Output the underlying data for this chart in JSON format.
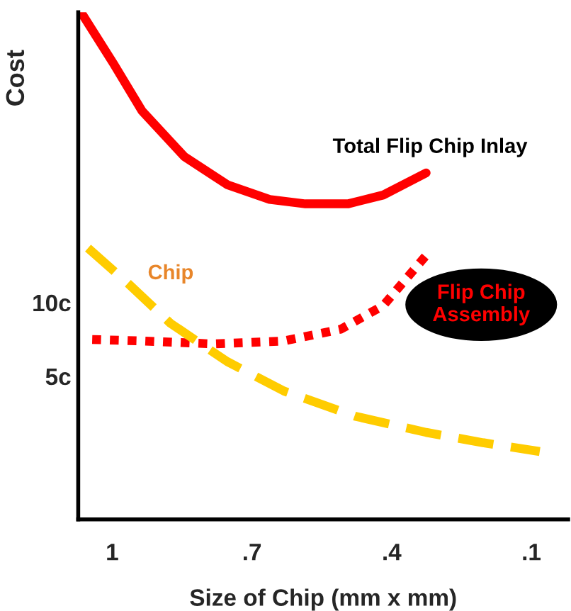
{
  "chart_data": {
    "type": "line",
    "xlabel": "Size of Chip (mm x mm)",
    "ylabel": "Cost",
    "xlim": [
      1.073,
      0.021
    ],
    "xticks": [
      {
        "value": 1,
        "label": "1"
      },
      {
        "value": 0.7,
        "label": ".7"
      },
      {
        "value": 0.4,
        "label": ".4"
      },
      {
        "value": 0.1,
        "label": ".1"
      }
    ],
    "ylim": [
      -4.7,
      29.7
    ],
    "yticks": [
      {
        "value": 5,
        "label": "5c"
      },
      {
        "value": 10,
        "label": "10c"
      }
    ],
    "legend": false,
    "grid": false,
    "marker": "none",
    "series": [
      {
        "name": "Total Flip Chip Inlay",
        "color": "#ff0000",
        "line_style": "solid",
        "x": [
          1.067,
          0.997,
          0.936,
          0.845,
          0.753,
          0.662,
          0.585,
          0.494,
          0.418,
          0.326
        ],
        "values": [
          29.7,
          26.2,
          23.0,
          19.9,
          18.0,
          17.0,
          16.7,
          16.7,
          17.3,
          18.8
        ]
      },
      {
        "name": "Flip Chip Assembly",
        "color": "#ff0000",
        "line_style": "dotted",
        "x": [
          1.043,
          0.936,
          0.784,
          0.631,
          0.509,
          0.418,
          0.326
        ],
        "values": [
          7.5,
          7.4,
          7.2,
          7.4,
          8.2,
          9.8,
          13.2
        ]
      },
      {
        "name": "Chip",
        "color": "#ffcc00",
        "line_style": "dashed",
        "x": [
          1.052,
          0.966,
          0.875,
          0.753,
          0.631,
          0.479,
          0.326,
          0.204,
          0.082
        ],
        "values": [
          13.7,
          11.3,
          8.6,
          6.0,
          4.0,
          2.3,
          1.2,
          0.5,
          -0.1
        ]
      }
    ]
  }
}
